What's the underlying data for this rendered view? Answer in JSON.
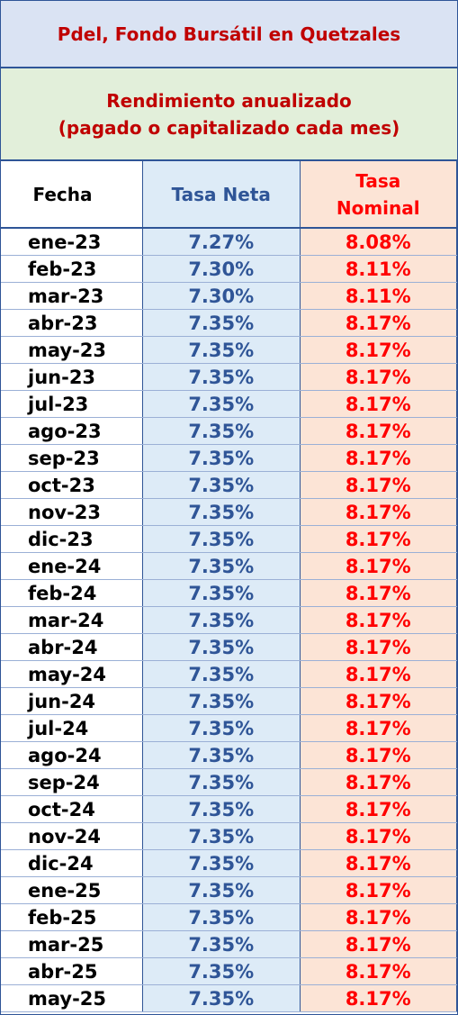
{
  "header": {
    "title": "Pdel, Fondo Bursátil en Quetzales",
    "subtitle_line1": "Rendimiento anualizado",
    "subtitle_line2": "(pagado o capitalizado cada mes)"
  },
  "table": {
    "columns": [
      "Fecha",
      "Tasa Neta",
      "Tasa Nominal"
    ],
    "rows": [
      [
        "ene-23",
        "7.27%",
        "8.08%"
      ],
      [
        "feb-23",
        "7.30%",
        "8.11%"
      ],
      [
        "mar-23",
        "7.30%",
        "8.11%"
      ],
      [
        "abr-23",
        "7.35%",
        "8.17%"
      ],
      [
        "may-23",
        "7.35%",
        "8.17%"
      ],
      [
        "jun-23",
        "7.35%",
        "8.17%"
      ],
      [
        "jul-23",
        "7.35%",
        "8.17%"
      ],
      [
        "ago-23",
        "7.35%",
        "8.17%"
      ],
      [
        "sep-23",
        "7.35%",
        "8.17%"
      ],
      [
        "oct-23",
        "7.35%",
        "8.17%"
      ],
      [
        "nov-23",
        "7.35%",
        "8.17%"
      ],
      [
        "dic-23",
        "7.35%",
        "8.17%"
      ],
      [
        "ene-24",
        "7.35%",
        "8.17%"
      ],
      [
        "feb-24",
        "7.35%",
        "8.17%"
      ],
      [
        "mar-24",
        "7.35%",
        "8.17%"
      ],
      [
        "abr-24",
        "7.35%",
        "8.17%"
      ],
      [
        "may-24",
        "7.35%",
        "8.17%"
      ],
      [
        "jun-24",
        "7.35%",
        "8.17%"
      ],
      [
        "jul-24",
        "7.35%",
        "8.17%"
      ],
      [
        "ago-24",
        "7.35%",
        "8.17%"
      ],
      [
        "sep-24",
        "7.35%",
        "8.17%"
      ],
      [
        "oct-24",
        "7.35%",
        "8.17%"
      ],
      [
        "nov-24",
        "7.35%",
        "8.17%"
      ],
      [
        "dic-24",
        "7.35%",
        "8.17%"
      ],
      [
        "ene-25",
        "7.35%",
        "8.17%"
      ],
      [
        "feb-25",
        "7.35%",
        "8.17%"
      ],
      [
        "mar-25",
        "7.35%",
        "8.17%"
      ],
      [
        "abr-25",
        "7.35%",
        "8.17%"
      ],
      [
        "may-25",
        "7.35%",
        "8.17%"
      ]
    ]
  }
}
